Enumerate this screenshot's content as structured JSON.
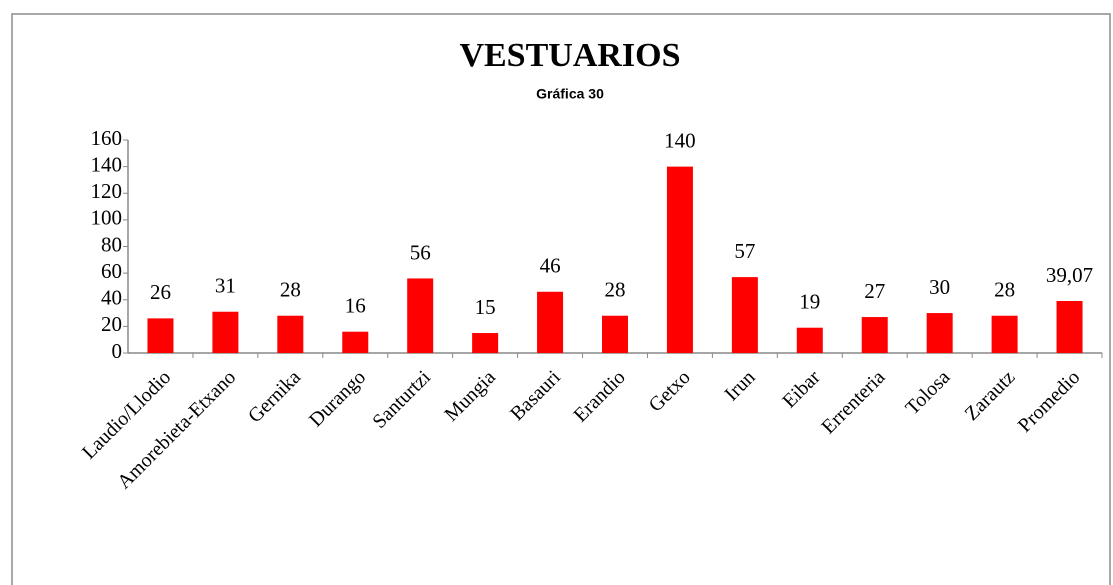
{
  "chart_data": {
    "type": "bar",
    "title": "VESTUARIOS",
    "subtitle": "Gráfica 30",
    "categories": [
      "Laudio/Llodio",
      "Amorebieta-Etxano",
      "Gernika",
      "Durango",
      "Santurtzi",
      "Mungia",
      "Basauri",
      "Erandio",
      "Getxo",
      "Irun",
      "Eibar",
      "Errenteria",
      "Tolosa",
      "Zarautz",
      "Promedio"
    ],
    "values": [
      26,
      31,
      28,
      16,
      56,
      15,
      46,
      28,
      140,
      57,
      19,
      27,
      30,
      28,
      39.07
    ],
    "value_labels": [
      "26",
      "31",
      "28",
      "16",
      "56",
      "15",
      "46",
      "28",
      "140",
      "57",
      "19",
      "27",
      "30",
      "28",
      "39,07"
    ],
    "color": "#ff0000",
    "ylim": [
      0,
      160
    ],
    "yticks": [
      0,
      20,
      40,
      60,
      80,
      100,
      120,
      140,
      160
    ],
    "grid": false
  }
}
